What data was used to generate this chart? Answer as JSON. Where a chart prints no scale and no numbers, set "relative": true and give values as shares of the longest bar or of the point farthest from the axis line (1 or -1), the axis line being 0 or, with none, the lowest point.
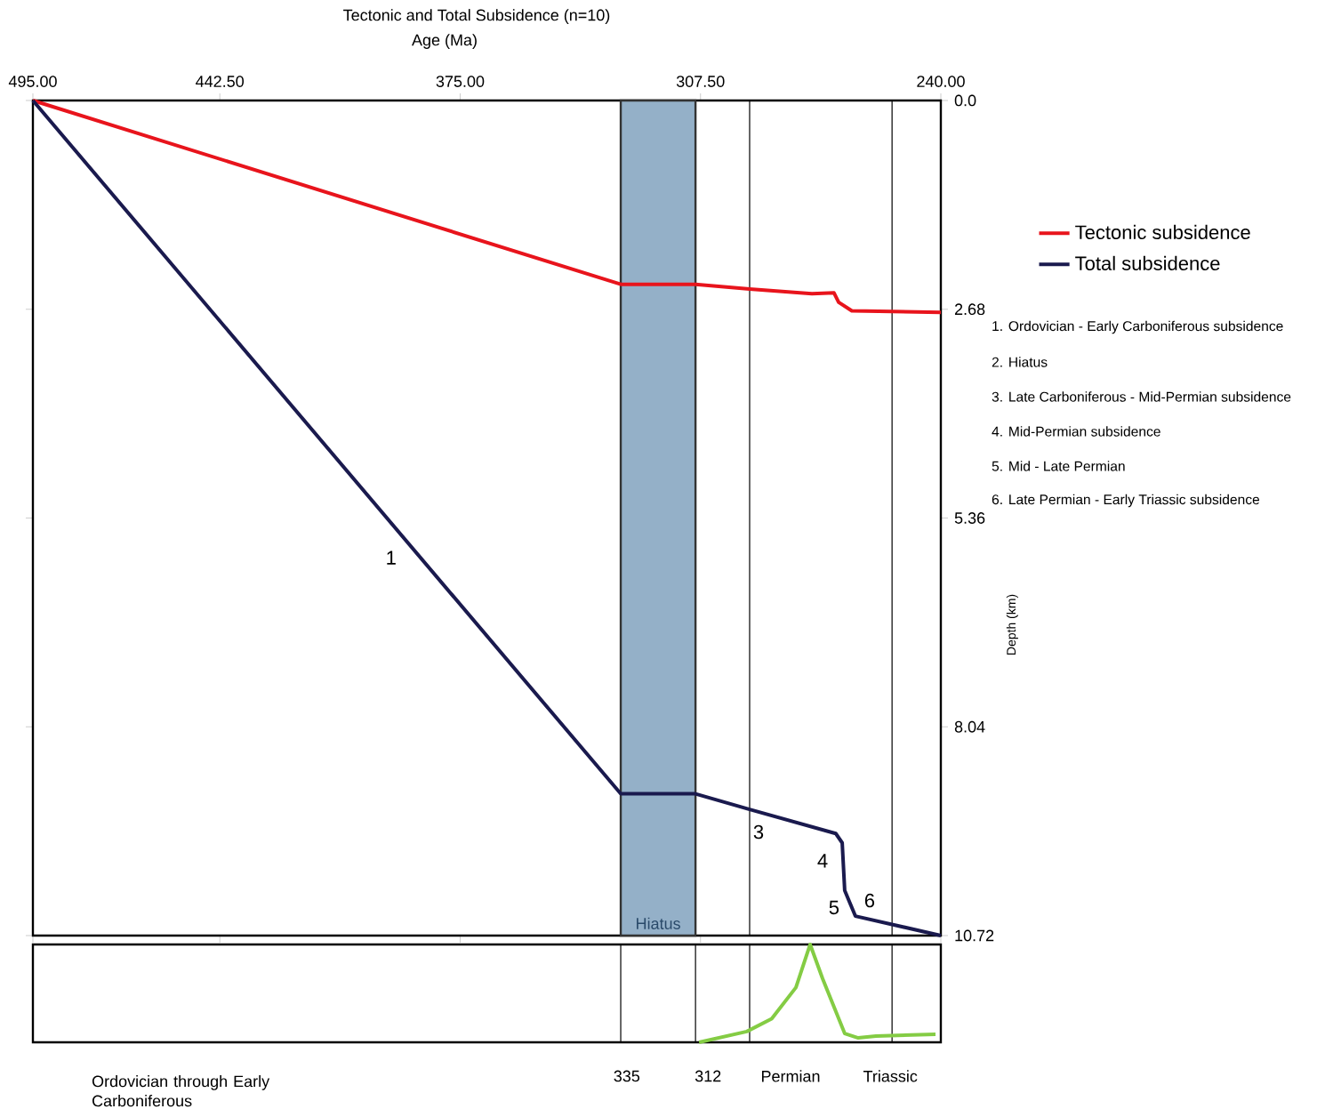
{
  "chart_data": [
    {
      "type": "line",
      "title": "Tectonic  and Total Subsidence (n=10)",
      "xlabel": "Age (Ma)",
      "ylabel": "Depth (km)",
      "series": [
        {
          "name": "Tectonic subsidence",
          "color": "#e8141c",
          "x": [
            495,
            329.9,
            308.9,
            293.7,
            276.2,
            270,
            268.7,
            265,
            240
          ],
          "values": [
            0,
            2.36,
            2.36,
            2.42,
            2.48,
            2.47,
            2.59,
            2.7,
            2.72
          ]
        },
        {
          "name": "Total subsidence",
          "color": "#1a1a4e",
          "x": [
            495,
            329.9,
            308.9,
            293.7,
            269.5,
            267.7,
            267,
            264,
            240
          ],
          "values": [
            0,
            8.9,
            8.9,
            9.1,
            9.41,
            9.53,
            10.14,
            10.47,
            10.72
          ]
        }
      ],
      "xlim": [
        495,
        240
      ],
      "ylim": [
        10.72,
        0
      ],
      "xticks": [
        {
          "value": 495,
          "label": "495.00"
        },
        {
          "value": 442.5,
          "label": "442.50"
        },
        {
          "value": 375,
          "label": "375.00"
        },
        {
          "value": 307.5,
          "label": "307.50"
        },
        {
          "value": 240,
          "label": "240.00"
        }
      ],
      "yticks": [
        {
          "value": 0,
          "label": "0.0"
        },
        2.68,
        5.36,
        8.04,
        10.72
      ],
      "bands": [
        {
          "axis": "x",
          "from": 329.9,
          "to": 308.9,
          "label": "Hiatus",
          "color": "#94b0c8"
        }
      ],
      "ref_lines": [
        {
          "axis": "x",
          "value": 293.7
        },
        {
          "axis": "x",
          "value": 253.7
        }
      ],
      "legend": "right",
      "annotations": [
        "1",
        "3",
        "4",
        "5",
        "6",
        "1. Ordovician - Early Carboniferous subsidence",
        "2. Hiatus",
        "3. Late Carboniferous - Mid-Permian subsidence",
        "4. Mid-Permian subsidence",
        "5. Mid - Late Permian",
        "6. Late Permian - Early Triassic subsidence"
      ]
    },
    {
      "type": "line",
      "relative": true,
      "series": [
        {
          "color": "#84cc44",
          "x": [
            307.9,
            294.5,
            287.5,
            280.7,
            276.7,
            273.2,
            267,
            263.2,
            258.2,
            241.5
          ],
          "values": [
            0,
            0.11,
            0.24,
            0.56,
            1,
            0.65,
            0.09,
            0.045,
            0.064,
            0.082
          ]
        }
      ],
      "xlim": [
        495,
        240
      ],
      "ref_lines": [
        {
          "axis": "x",
          "value": 329.9
        },
        {
          "axis": "x",
          "value": 308.9
        },
        {
          "axis": "x",
          "value": 293.7
        },
        {
          "axis": "x",
          "value": 253.7
        }
      ],
      "annotations": [
        "Ordovician through Early Carboniferous",
        "335",
        "312",
        "Permian",
        "Triassic"
      ]
    }
  ]
}
